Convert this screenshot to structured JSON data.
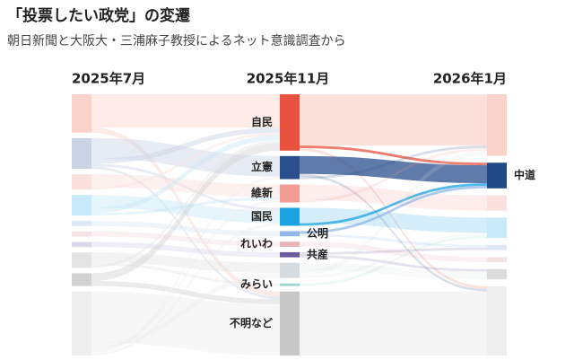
{
  "chart_data": {
    "type": "sankey",
    "title": "「投票したい政党」の変遷",
    "subtitle": "朝日新聞と大阪大・三浦麻子教授によるネット意識調査から",
    "columns": [
      {
        "label": "2025年7月",
        "nodes": [
          {
            "name": null,
            "value": 15,
            "color": "#f9d2ca"
          },
          {
            "name": null,
            "value": 12,
            "color": "#c9d3e4"
          },
          {
            "name": null,
            "value": 6,
            "color": "#fbe1de"
          },
          {
            "name": null,
            "value": 8,
            "color": "#c8e9f7"
          },
          {
            "name": null,
            "value": 2,
            "color": "#dde8f5"
          },
          {
            "name": null,
            "value": 2,
            "color": "#f3e3e3"
          },
          {
            "name": null,
            "value": 2,
            "color": "#dcd7e8"
          },
          {
            "name": null,
            "value": 6,
            "color": "#e4e4e4"
          },
          {
            "name": null,
            "value": 5,
            "color": "#d2d2d2"
          },
          {
            "name": null,
            "value": 25,
            "color": "#eeeeee"
          }
        ],
        "links": [
          {
            "source": 0,
            "target": 0,
            "value": 13
          },
          {
            "source": 0,
            "target": 9,
            "value": 2
          },
          {
            "source": 1,
            "target": 1,
            "value": 8
          },
          {
            "source": 1,
            "target": 0,
            "value": 2
          },
          {
            "source": 1,
            "target": 3,
            "value": 1
          },
          {
            "source": 1,
            "target": 9,
            "value": 1
          },
          {
            "source": 2,
            "target": 2,
            "value": 5
          },
          {
            "source": 2,
            "target": 0,
            "value": 1
          },
          {
            "source": 3,
            "target": 3,
            "value": 5
          },
          {
            "source": 3,
            "target": 0,
            "value": 2
          },
          {
            "source": 3,
            "target": 2,
            "value": 1
          },
          {
            "source": 4,
            "target": 4,
            "value": 2
          },
          {
            "source": 5,
            "target": 5,
            "value": 2
          },
          {
            "source": 6,
            "target": 6,
            "value": 2
          },
          {
            "source": 7,
            "target": 7,
            "value": 4
          },
          {
            "source": 7,
            "target": 8,
            "value": 1
          },
          {
            "source": 7,
            "target": 0,
            "value": 1
          },
          {
            "source": 8,
            "target": 0,
            "value": 3
          },
          {
            "source": 8,
            "target": 9,
            "value": 2
          },
          {
            "source": 9,
            "target": 9,
            "value": 20
          },
          {
            "source": 9,
            "target": 7,
            "value": 2
          },
          {
            "source": 9,
            "target": 2,
            "value": 1
          },
          {
            "source": 9,
            "target": 1,
            "value": 1
          },
          {
            "source": 9,
            "target": 3,
            "value": 1
          }
        ]
      },
      {
        "label": "2025年11月",
        "nodes": [
          {
            "name": "自民",
            "value": 22,
            "color": "#e8523f"
          },
          {
            "name": "立憲",
            "value": 9,
            "color": "#2a4f8c"
          },
          {
            "name": "維新",
            "value": 7,
            "color": "#f39c96"
          },
          {
            "name": "国民",
            "value": 7,
            "color": "#1aa3e0"
          },
          {
            "name": "公明",
            "value": 2,
            "color": "#8fb8e8"
          },
          {
            "name": "れいわ",
            "value": 2,
            "color": "#e8b4b8"
          },
          {
            "name": "共産",
            "value": 2,
            "color": "#6d5c9c"
          },
          {
            "name": null,
            "value": 6,
            "color": "#d6dbe0"
          },
          {
            "name": "みらい",
            "value": 1,
            "color": "#9fd6d0"
          },
          {
            "name": "不明など",
            "value": 25,
            "color": "#c8c8c8"
          }
        ],
        "links": [
          {
            "source": 0,
            "target": 0,
            "value": 20
          },
          {
            "source": 0,
            "target": 1,
            "value": 1
          },
          {
            "source": 0,
            "target": 7,
            "value": 1
          },
          {
            "source": 1,
            "target": 1,
            "value": 7
          },
          {
            "source": 1,
            "target": 7,
            "value": 1
          },
          {
            "source": 1,
            "target": 0,
            "value": 1
          },
          {
            "source": 2,
            "target": 2,
            "value": 6
          },
          {
            "source": 2,
            "target": 0,
            "value": 1
          },
          {
            "source": 3,
            "target": 3,
            "value": 6
          },
          {
            "source": 3,
            "target": 1,
            "value": 1
          },
          {
            "source": 4,
            "target": 1,
            "value": 1
          },
          {
            "source": 4,
            "target": 4,
            "value": 1
          },
          {
            "source": 5,
            "target": 5,
            "value": 2
          },
          {
            "source": 6,
            "target": 4,
            "value": 1
          },
          {
            "source": 6,
            "target": 6,
            "value": 1
          },
          {
            "source": 7,
            "target": 6,
            "value": 3
          },
          {
            "source": 7,
            "target": 0,
            "value": 2
          },
          {
            "source": 7,
            "target": 3,
            "value": 1
          },
          {
            "source": 8,
            "target": 3,
            "value": 1
          },
          {
            "source": 9,
            "target": 7,
            "value": 25
          }
        ]
      },
      {
        "label": "2026年1月",
        "highlight": 1,
        "nodes": [
          {
            "name": null,
            "value": 24,
            "color": "#f9d2ca"
          },
          {
            "name": "中道",
            "value": 10,
            "color": "#1f4a86"
          },
          {
            "name": null,
            "value": 6,
            "color": "#fbe1de"
          },
          {
            "name": null,
            "value": 8,
            "color": "#c8e9f7"
          },
          {
            "name": null,
            "value": 2,
            "color": "#dde8f5"
          },
          {
            "name": null,
            "value": 2,
            "color": "#f3e3e3"
          },
          {
            "name": null,
            "value": 4,
            "color": "#dcdcdc"
          },
          {
            "name": null,
            "value": 27,
            "color": "#eeeeee"
          }
        ]
      }
    ]
  }
}
